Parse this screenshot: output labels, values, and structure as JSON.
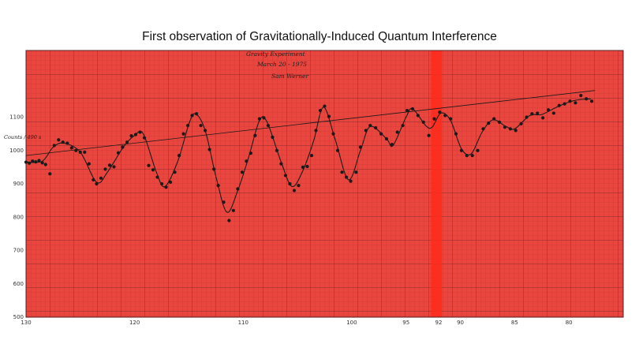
{
  "title": "First observation of Gravitationally-Induced Quantum Interference",
  "annotation": [
    "Gravity Experiment",
    "March 20 - 1975",
    "Sam Werner"
  ],
  "colors": {
    "paper": "#e8463e",
    "grid_minor": "#b8353a",
    "grid_major": "#7a2a30",
    "band": "#ff2a1a",
    "ink": "#1a1a1a"
  },
  "chart_data": {
    "type": "scatter",
    "xlabel": "",
    "ylabel": "Counts / 490 s",
    "x_direction": "decreasing",
    "xlim": [
      130,
      75
    ],
    "ylim": [
      500,
      1300
    ],
    "x_ticks": [
      130,
      120,
      110,
      100,
      95,
      92,
      90,
      85,
      80
    ],
    "y_ticks": [
      500,
      600,
      700,
      800,
      900,
      1000,
      1100
    ],
    "grid": true,
    "highlight_band_x": 92.2,
    "series": [
      {
        "kind": "points",
        "points": [
          [
            130.0,
            965
          ],
          [
            129.7,
            962
          ],
          [
            129.4,
            968
          ],
          [
            129.1,
            966
          ],
          [
            128.8,
            970
          ],
          [
            128.5,
            963
          ],
          [
            128.2,
            958
          ],
          [
            127.8,
            930
          ],
          [
            127.4,
            1015
          ],
          [
            127.0,
            1032
          ],
          [
            126.6,
            1025
          ],
          [
            126.2,
            1022
          ],
          [
            125.8,
            1008
          ],
          [
            125.4,
            1000
          ],
          [
            125.0,
            995
          ],
          [
            124.6,
            995
          ],
          [
            124.2,
            960
          ],
          [
            123.8,
            912
          ],
          [
            123.5,
            900
          ],
          [
            123.1,
            917
          ],
          [
            122.7,
            944
          ],
          [
            122.3,
            956
          ],
          [
            121.9,
            951
          ],
          [
            121.5,
            993
          ],
          [
            121.1,
            1010
          ],
          [
            120.7,
            1025
          ],
          [
            120.3,
            1044
          ],
          [
            119.9,
            1048
          ],
          [
            119.5,
            1055
          ],
          [
            119.1,
            1038
          ],
          [
            118.7,
            955
          ],
          [
            118.3,
            942
          ],
          [
            117.9,
            920
          ],
          [
            117.5,
            900
          ],
          [
            117.1,
            890
          ],
          [
            116.7,
            905
          ],
          [
            116.3,
            935
          ],
          [
            115.9,
            985
          ],
          [
            115.5,
            1050
          ],
          [
            115.1,
            1075
          ],
          [
            114.7,
            1105
          ],
          [
            114.3,
            1110
          ],
          [
            113.9,
            1075
          ],
          [
            113.5,
            1060
          ],
          [
            113.1,
            1003
          ],
          [
            112.7,
            944
          ],
          [
            112.3,
            895
          ],
          [
            111.8,
            845
          ],
          [
            111.3,
            790
          ],
          [
            110.9,
            820
          ],
          [
            110.5,
            885
          ],
          [
            110.1,
            935
          ],
          [
            109.7,
            968
          ],
          [
            109.3,
            992
          ],
          [
            108.9,
            1045
          ],
          [
            108.5,
            1095
          ],
          [
            108.1,
            1098
          ],
          [
            107.7,
            1075
          ],
          [
            107.3,
            1040
          ],
          [
            106.9,
            1000
          ],
          [
            106.5,
            960
          ],
          [
            106.1,
            925
          ],
          [
            105.7,
            900
          ],
          [
            105.3,
            880
          ],
          [
            104.9,
            895
          ],
          [
            104.5,
            950
          ],
          [
            104.1,
            952
          ],
          [
            103.7,
            985
          ],
          [
            103.3,
            1060
          ],
          [
            102.9,
            1120
          ],
          [
            102.5,
            1133
          ],
          [
            102.1,
            1102
          ],
          [
            101.7,
            1050
          ],
          [
            101.3,
            1000
          ],
          [
            100.9,
            935
          ],
          [
            100.5,
            920
          ],
          [
            100.1,
            908
          ],
          [
            99.6,
            935
          ],
          [
            99.2,
            1010
          ],
          [
            98.7,
            1060
          ],
          [
            98.3,
            1075
          ],
          [
            97.8,
            1068
          ],
          [
            97.3,
            1050
          ],
          [
            96.8,
            1035
          ],
          [
            96.3,
            1018
          ],
          [
            95.8,
            1055
          ],
          [
            95.3,
            1075
          ],
          [
            94.9,
            1120
          ],
          [
            94.4,
            1125
          ],
          [
            93.9,
            1105
          ],
          [
            93.4,
            1085
          ],
          [
            92.9,
            1045
          ],
          [
            92.4,
            1095
          ],
          [
            91.9,
            1115
          ],
          [
            91.4,
            1105
          ],
          [
            90.9,
            1095
          ],
          [
            90.4,
            1050
          ],
          [
            89.9,
            1000
          ],
          [
            89.4,
            985
          ],
          [
            88.9,
            985
          ],
          [
            88.4,
            1000
          ],
          [
            87.9,
            1065
          ],
          [
            87.4,
            1082
          ],
          [
            86.9,
            1095
          ],
          [
            86.4,
            1085
          ],
          [
            85.9,
            1070
          ],
          [
            85.4,
            1065
          ],
          [
            84.9,
            1060
          ],
          [
            84.4,
            1080
          ],
          [
            83.9,
            1100
          ],
          [
            83.4,
            1110
          ],
          [
            82.9,
            1112
          ],
          [
            82.4,
            1098
          ],
          [
            81.9,
            1122
          ],
          [
            81.4,
            1112
          ],
          [
            80.9,
            1135
          ],
          [
            80.4,
            1140
          ],
          [
            79.9,
            1148
          ],
          [
            79.4,
            1143
          ],
          [
            78.9,
            1165
          ],
          [
            78.4,
            1155
          ],
          [
            77.9,
            1148
          ]
        ]
      },
      {
        "kind": "fit",
        "points": [
          [
            130.0,
            965
          ],
          [
            128.5,
            968
          ],
          [
            127.5,
            1010
          ],
          [
            126.5,
            1022
          ],
          [
            125.0,
            995
          ],
          [
            123.5,
            905
          ],
          [
            122.5,
            935
          ],
          [
            121.0,
            1012
          ],
          [
            120.0,
            1045
          ],
          [
            119.2,
            1050
          ],
          [
            118.0,
            935
          ],
          [
            117.2,
            892
          ],
          [
            116.0,
            970
          ],
          [
            115.0,
            1080
          ],
          [
            114.4,
            1110
          ],
          [
            113.5,
            1060
          ],
          [
            112.5,
            920
          ],
          [
            111.5,
            815
          ],
          [
            110.5,
            880
          ],
          [
            109.5,
            980
          ],
          [
            108.5,
            1090
          ],
          [
            107.8,
            1085
          ],
          [
            106.5,
            965
          ],
          [
            105.5,
            892
          ],
          [
            104.5,
            940
          ],
          [
            103.5,
            1030
          ],
          [
            102.6,
            1130
          ],
          [
            101.5,
            1030
          ],
          [
            100.3,
            912
          ],
          [
            99.2,
            1000
          ],
          [
            98.3,
            1072
          ],
          [
            96.8,
            1035
          ],
          [
            96.2,
            1015
          ],
          [
            95.0,
            1100
          ],
          [
            94.4,
            1125
          ],
          [
            93.2,
            1075
          ],
          [
            92.6,
            1070
          ],
          [
            91.8,
            1112
          ],
          [
            90.9,
            1090
          ],
          [
            89.9,
            1005
          ],
          [
            89.0,
            990
          ],
          [
            88.0,
            1055
          ],
          [
            87.0,
            1092
          ],
          [
            85.8,
            1072
          ],
          [
            85.0,
            1065
          ],
          [
            83.6,
            1105
          ],
          [
            82.5,
            1108
          ],
          [
            81.0,
            1132
          ],
          [
            79.5,
            1150
          ],
          [
            78.0,
            1155
          ]
        ]
      },
      {
        "kind": "trend",
        "points": [
          [
            130.0,
            985
          ],
          [
            77.6,
            1180
          ]
        ]
      }
    ]
  }
}
